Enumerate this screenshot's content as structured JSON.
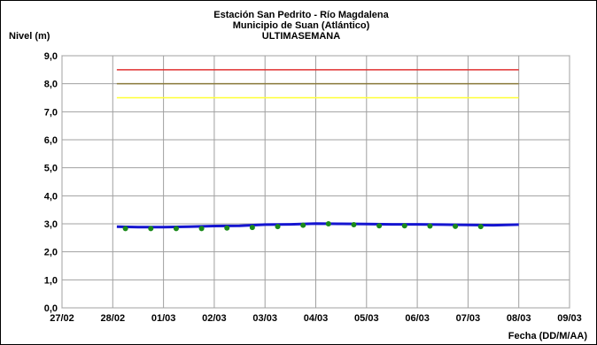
{
  "chart_data": {
    "type": "line",
    "title": [
      "Estación San Pedrito - Río Magdalena",
      "Municipio de Suan (Atlántico)",
      "ULTIMASEMANA"
    ],
    "ylabel": "Nivel (m)",
    "xlabel": "Fecha (DD/M/AA)",
    "y_ticks": [
      "0,0",
      "1,0",
      "2,0",
      "3,0",
      "4,0",
      "5,0",
      "6,0",
      "7,0",
      "8,0",
      "9,0"
    ],
    "ylim": [
      0,
      9
    ],
    "x_ticks": [
      "27/02",
      "28/02",
      "01/03",
      "02/03",
      "03/03",
      "04/03",
      "05/03",
      "06/03",
      "07/03",
      "08/03",
      "09/03"
    ],
    "xlim": [
      0,
      10
    ],
    "grid": true,
    "threshold_lines": [
      {
        "value": 8.5,
        "color": "#e03030",
        "x_start": 1.08,
        "x_end": 9.0
      },
      {
        "value": 8.0,
        "color": "#8a7a3a",
        "x_start": 1.08,
        "x_end": 9.0
      },
      {
        "value": 7.5,
        "color": "#ffff33",
        "x_start": 1.08,
        "x_end": 9.0
      }
    ],
    "series": [
      {
        "color": "#1515d0",
        "style": "line",
        "x": [
          1.08,
          1.5,
          2.0,
          2.5,
          3.0,
          3.5,
          4.0,
          4.5,
          5.0,
          5.5,
          6.0,
          6.5,
          7.0,
          7.5,
          8.0,
          8.5,
          9.0
        ],
        "y": [
          2.9,
          2.88,
          2.88,
          2.9,
          2.92,
          2.93,
          2.97,
          2.98,
          3.01,
          3.0,
          2.99,
          2.98,
          2.98,
          2.97,
          2.96,
          2.95,
          2.97
        ]
      },
      {
        "color": "#1a8a1a",
        "style": "points",
        "x": [
          1.25,
          1.75,
          2.25,
          2.75,
          3.25,
          3.75,
          4.25,
          4.75,
          5.25,
          5.75,
          6.25,
          6.75,
          7.25,
          7.75,
          8.25
        ],
        "y": [
          2.83,
          2.83,
          2.83,
          2.83,
          2.85,
          2.87,
          2.9,
          2.95,
          3.0,
          2.97,
          2.93,
          2.93,
          2.92,
          2.91,
          2.9
        ]
      }
    ]
  }
}
